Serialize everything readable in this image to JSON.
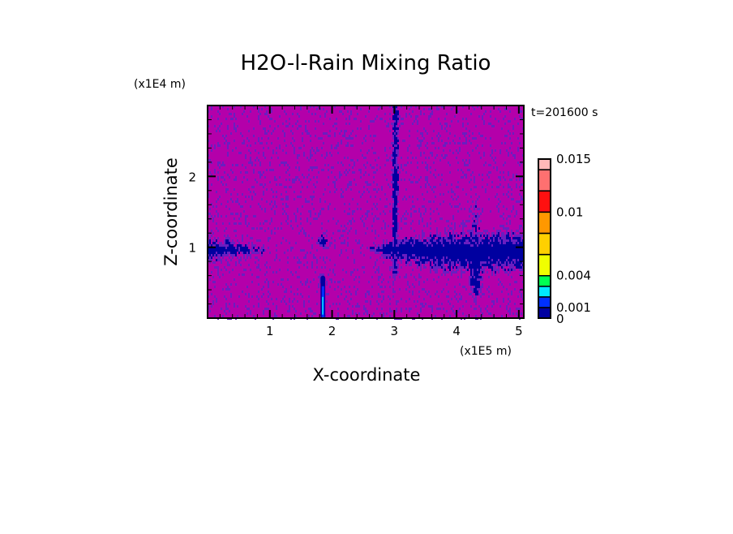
{
  "chart_data": {
    "type": "heatmap",
    "title": "H2O-l-Rain Mixing Ratio",
    "time_label": "t=201600 s",
    "xlabel": "X-coordinate",
    "ylabel": "Z-coordinate",
    "x_unit": "(x1E5 m)",
    "y_unit": "(x1E4 m)",
    "xlim": [
      0,
      5.08
    ],
    "ylim": [
      0,
      3.0
    ],
    "x_ticks": [
      1,
      2,
      3,
      4,
      5
    ],
    "x_tick_labels": [
      "1",
      "2",
      "3",
      "4",
      "5"
    ],
    "y_ticks": [
      1,
      2
    ],
    "y_tick_labels": [
      "1",
      "2"
    ],
    "x_minor_step": 0.2,
    "y_minor_step": 0.2,
    "colorbar": {
      "levels": [
        0,
        0.001,
        0.002,
        0.003,
        0.004,
        0.006,
        0.008,
        0.01,
        0.012,
        0.014,
        0.015
      ],
      "colors": [
        "#0000a0",
        "#0030ff",
        "#00e8ff",
        "#00ff50",
        "#f0ff00",
        "#ffd000",
        "#ff9800",
        "#ff1010",
        "#ff7070",
        "#ffb8b8"
      ],
      "tick_values": [
        0,
        0.001,
        0.004,
        0.01,
        0.015
      ],
      "tick_labels": [
        "0",
        "0.001",
        "0.004",
        "0.01",
        "0.015"
      ]
    },
    "background_color": "#b400aa",
    "features": [
      {
        "x_range": [
          0,
          0.85
        ],
        "z_range": [
          0.75,
          1.25
        ],
        "max_level": 0.001
      },
      {
        "x_range": [
          1.75,
          1.95
        ],
        "z_range": [
          0.95,
          1.25
        ],
        "max_level": 0.001
      },
      {
        "x_range": [
          1.8,
          1.9
        ],
        "z_range": [
          0,
          0.6
        ],
        "max_level": 0.003
      },
      {
        "x_range": [
          2.6,
          5.08
        ],
        "z_range": [
          0.6,
          1.3
        ],
        "max_level": 0.001
      }
    ]
  }
}
